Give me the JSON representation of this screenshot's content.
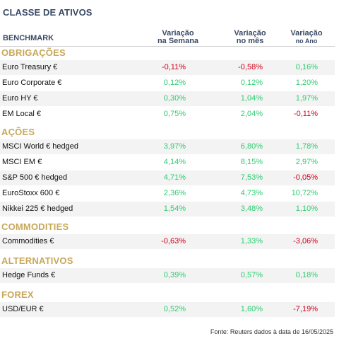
{
  "title": "CLASSE DE ATIVOS",
  "header": {
    "benchmark": "BENCHMARK",
    "col1_line1": "Variação",
    "col1_line2": "na Semana",
    "col2_line1": "Variação",
    "col2_line2": "no mês",
    "col3_line1": "Variação",
    "col3_line2": "no Ano"
  },
  "sections": [
    {
      "name": "OBRIGAÇÕES",
      "rows": [
        {
          "name": "Euro Treasury €",
          "week": "-0,11%",
          "month": "-0,58%",
          "year": "0,16%"
        },
        {
          "name": "Euro Corporate €",
          "week": "0,12%",
          "month": "0,12%",
          "year": "1,20%"
        },
        {
          "name": "Euro HY €",
          "week": "0,30%",
          "month": "1,04%",
          "year": "1,97%"
        },
        {
          "name": "EM Local €",
          "week": "0,75%",
          "month": "2,04%",
          "year": "-0,11%"
        }
      ]
    },
    {
      "name": "AÇÕES",
      "rows": [
        {
          "name": "MSCI World € hedged",
          "week": "3,97%",
          "month": "6,80%",
          "year": "1,78%"
        },
        {
          "name": "MSCI EM €",
          "week": "4,14%",
          "month": "8,15%",
          "year": "2,97%"
        },
        {
          "name": "S&P 500 € hedged",
          "week": "4,71%",
          "month": "7,53%",
          "year": "-0,05%"
        },
        {
          "name": "EuroStoxx 600 €",
          "week": "2,36%",
          "month": "4,73%",
          "year": "10,72%"
        },
        {
          "name": "Nikkei 225 € hedged",
          "week": "1,54%",
          "month": "3,48%",
          "year": "1,10%"
        }
      ]
    },
    {
      "name": "COMMODITIES",
      "rows": [
        {
          "name": "Commodities €",
          "week": "-0,63%",
          "month": "1,33%",
          "year": "-3,06%"
        }
      ]
    },
    {
      "name": "ALTERNATIVOS",
      "rows": [
        {
          "name": "Hedge Funds €",
          "week": "0,39%",
          "month": "0,57%",
          "year": "0,18%"
        }
      ]
    },
    {
      "name": "FOREX",
      "rows": [
        {
          "name": "USD/EUR €",
          "week": "0,52%",
          "month": "1,60%",
          "year": "-7,19%"
        }
      ]
    }
  ],
  "footer": "Fonte: Reuters dados à data de 16/05/2025",
  "colors": {
    "positive": "#2ecc71",
    "negative": "#d0021b",
    "section": "#c8a85a",
    "header": "#3b4a66"
  }
}
